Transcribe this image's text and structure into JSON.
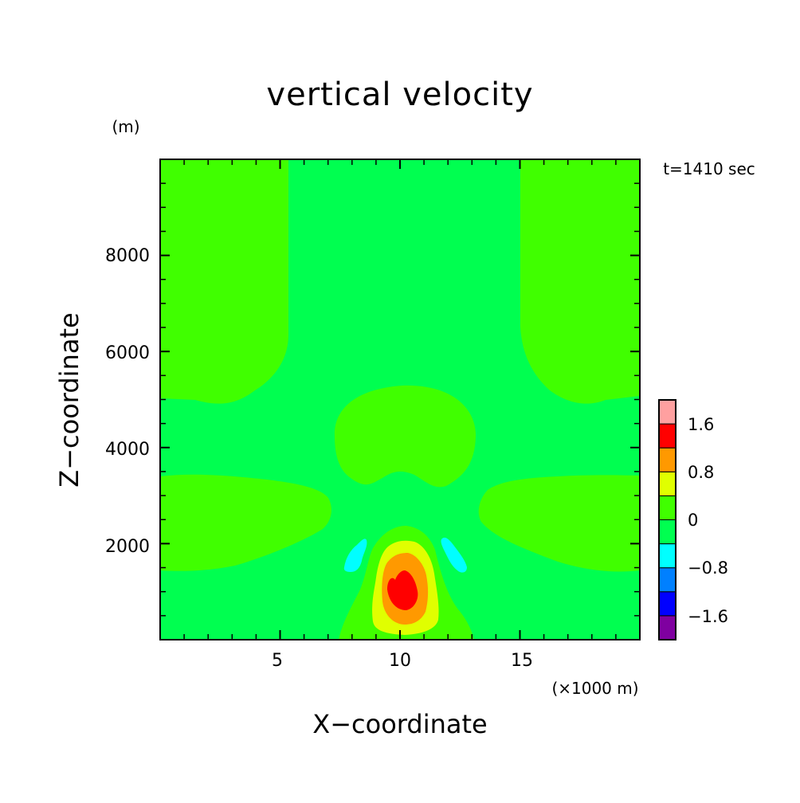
{
  "chart_data": {
    "type": "contour",
    "title": "vertical velocity",
    "time_label": "t=1410 sec",
    "xlabel": "X−coordinate",
    "x_unit": "(×1000 m)",
    "ylabel": "Z−coordinate",
    "y_unit": "(m)",
    "xlim": [
      0,
      20
    ],
    "ylim": [
      0,
      10000
    ],
    "xticks": [
      5,
      10,
      15
    ],
    "yticks": [
      2000,
      4000,
      6000,
      8000
    ],
    "xtick_labels": [
      "5",
      "10",
      "15"
    ],
    "ytick_labels": [
      "2000",
      "4000",
      "6000",
      "8000"
    ],
    "colorbar": {
      "levels": [
        -2.0,
        -1.6,
        -1.2,
        -0.8,
        -0.4,
        0,
        0.4,
        0.8,
        1.2,
        1.6,
        2.0
      ],
      "colors": [
        "#7f00a0",
        "#0000ff",
        "#0080ff",
        "#00ffff",
        "#00ff50",
        "#40ff00",
        "#e0ff00",
        "#ff9900",
        "#ff0000",
        "#ffa0a0"
      ],
      "labels": [
        "−1.6",
        "−0.8",
        "0",
        "0.8",
        "1.6"
      ],
      "label_values": [
        -1.6,
        -0.8,
        0,
        0.8,
        1.6
      ]
    },
    "background_level_color": "#00ff50",
    "regions": [
      {
        "name": "upper-left-updraft",
        "level": "0 to 0.4",
        "color": "#40ff00"
      },
      {
        "name": "upper-right-updraft",
        "level": "0 to 0.4",
        "color": "#40ff00"
      },
      {
        "name": "mid-center-updraft",
        "level": "0 to 0.4",
        "color": "#40ff00"
      },
      {
        "name": "lower-left-updraft",
        "level": "0 to 0.4",
        "color": "#40ff00"
      },
      {
        "name": "lower-right-updraft",
        "level": "0 to 0.4",
        "color": "#40ff00"
      },
      {
        "name": "core-outer",
        "level": "0 to 0.4",
        "color": "#40ff00"
      },
      {
        "name": "core-yellow",
        "level": "0.4 to 0.8",
        "color": "#e0ff00"
      },
      {
        "name": "core-orange",
        "level": "0.8 to 1.2",
        "color": "#ff9900"
      },
      {
        "name": "core-red",
        "level": "1.2 to 1.6",
        "color": "#ff0000"
      },
      {
        "name": "downdraft-left",
        "level": "-0.8 to -0.4",
        "color": "#00ffff"
      },
      {
        "name": "downdraft-right",
        "level": "-0.8 to -0.4",
        "color": "#00ffff"
      }
    ]
  }
}
